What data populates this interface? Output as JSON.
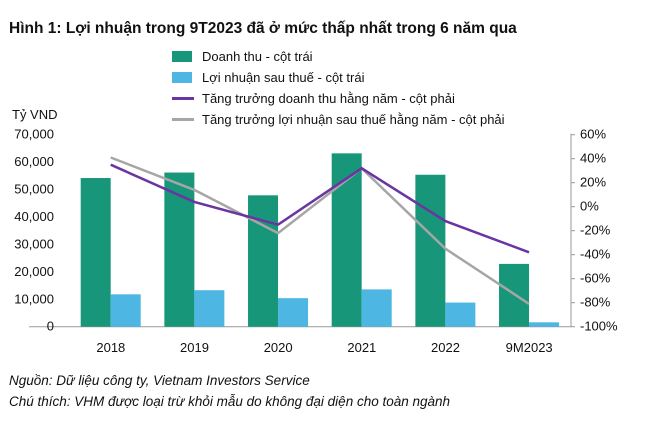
{
  "title": "Hình 1: Lợi nhuận trong 9T2023 đã ở mức thấp nhất trong 6 năm qua",
  "source": "Nguồn: Dữ liệu công ty, Vietnam Investors Service",
  "footnote": "Chú thích: VHM được loại trừ khỏi mẫu do không đại diện cho toàn ngành",
  "chart_data": {
    "type": "bar+line",
    "categories": [
      "2018",
      "2019",
      "2020",
      "2021",
      "2022",
      "9M2023"
    ],
    "y_left": {
      "label": "Tỷ VND",
      "range": [
        0,
        70000
      ],
      "ticks": [
        "0",
        "10,000",
        "20,000",
        "30,000",
        "40,000",
        "50,000",
        "60,000",
        "70,000"
      ]
    },
    "y_right": {
      "range": [
        -100,
        60
      ],
      "ticks": [
        "-100%",
        "-80%",
        "-60%",
        "-40%",
        "-20%",
        "0%",
        "20%",
        "40%",
        "60%"
      ]
    },
    "grid": false,
    "legend_position": "top",
    "series": [
      {
        "name": "Doanh thu - cột trái",
        "type": "bar",
        "axis": "left",
        "color": "#17967a",
        "values": [
          54200,
          56200,
          47900,
          63200,
          55400,
          22900
        ]
      },
      {
        "name": "Lợi nhuận sau thuế - cột trái",
        "type": "bar",
        "axis": "left",
        "color": "#4db6e2",
        "values": [
          11800,
          13300,
          10400,
          13600,
          8800,
          1600
        ]
      },
      {
        "name": "Tăng trưởng doanh thu hằng năm - cột phải",
        "type": "line",
        "axis": "right",
        "color": "#6a35a0",
        "values": [
          35,
          4,
          -15,
          32,
          -12,
          -38
        ]
      },
      {
        "name": "Tăng trưởng lợi nhuận sau thuế hằng năm - cột phải",
        "type": "line",
        "axis": "right",
        "color": "#a6a6a6",
        "values": [
          41,
          14,
          -22,
          32,
          -35,
          -81
        ]
      }
    ]
  }
}
